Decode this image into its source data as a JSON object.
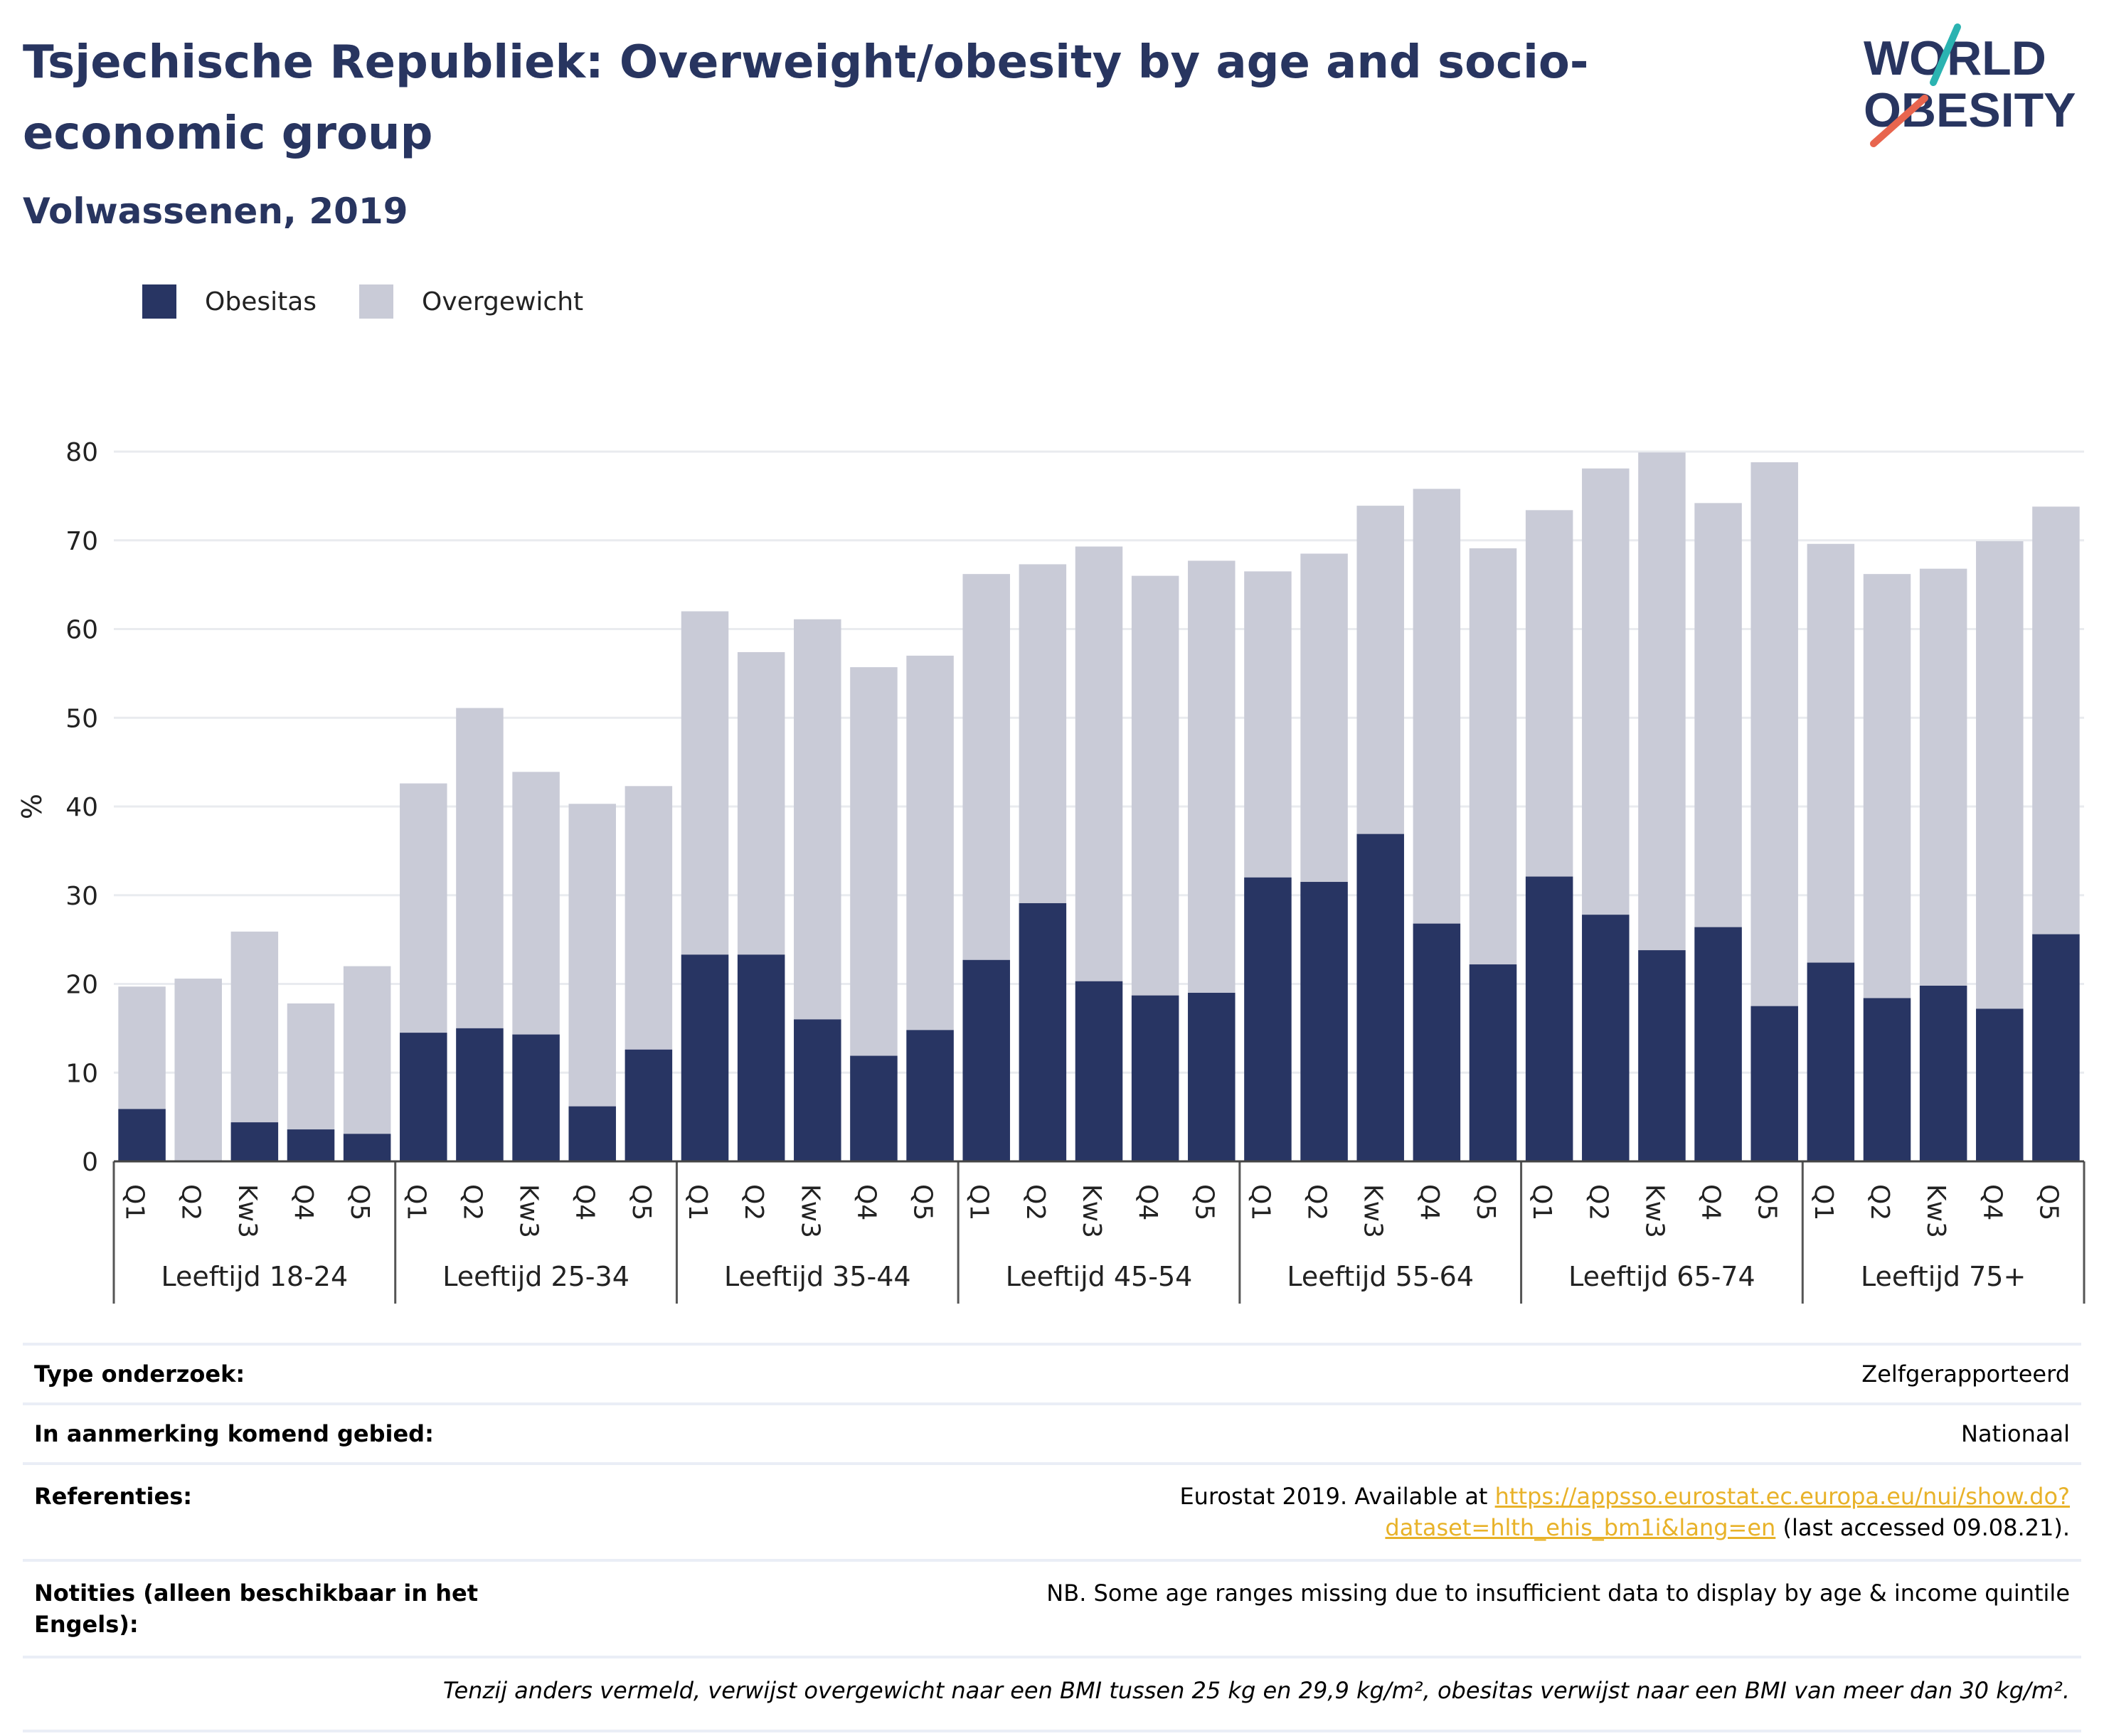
{
  "title": "Tsjechische Republiek: Overweight/obesity by age and socio-economic group",
  "subtitle": "Volwassenen, 2019",
  "logo": {
    "line1": "WORLD",
    "line2": "OBESITY"
  },
  "colors": {
    "obesity": "#283563",
    "overweight": "#c9cbd7",
    "title": "#283560",
    "link": "#e8b229",
    "grid": "#e9ebef"
  },
  "legend": [
    {
      "label": "Obesitas",
      "color": "#283563"
    },
    {
      "label": "Overgewicht",
      "color": "#c9cbd7"
    }
  ],
  "chart_data": {
    "type": "bar",
    "stacked": false,
    "ylabel": "%",
    "ylim": [
      0,
      80
    ],
    "yticks": [
      0,
      10,
      20,
      30,
      40,
      50,
      60,
      70,
      80
    ],
    "grid": true,
    "legend_position": "top-left",
    "groups": [
      "Leeftijd 18-24",
      "Leeftijd 25-34",
      "Leeftijd 35-44",
      "Leeftijd 45-54",
      "Leeftijd 55-64",
      "Leeftijd 65-74",
      "Leeftijd 75+"
    ],
    "categories": [
      "Q1",
      "Q2",
      "Kw3",
      "Q4",
      "Q5"
    ],
    "series": [
      {
        "name": "Overgewicht",
        "values": [
          [
            19.7,
            20.6,
            25.9,
            17.8,
            22.0
          ],
          [
            42.6,
            51.1,
            43.9,
            40.3,
            42.3
          ],
          [
            62.0,
            57.4,
            61.1,
            55.7,
            57.0
          ],
          [
            66.2,
            67.3,
            69.3,
            66.0,
            67.7
          ],
          [
            66.5,
            68.5,
            73.9,
            75.8,
            69.1
          ],
          [
            73.4,
            78.1,
            79.9,
            74.2,
            78.8
          ],
          [
            69.6,
            66.2,
            66.8,
            69.9,
            73.8
          ]
        ]
      },
      {
        "name": "Obesitas",
        "values": [
          [
            5.9,
            null,
            4.4,
            3.6,
            3.1
          ],
          [
            14.5,
            15.0,
            14.3,
            6.2,
            12.6
          ],
          [
            23.3,
            23.3,
            16.0,
            11.9,
            14.8
          ],
          [
            22.7,
            29.1,
            20.3,
            18.7,
            19.0
          ],
          [
            32.0,
            31.5,
            36.9,
            26.8,
            22.2
          ],
          [
            32.1,
            27.8,
            23.8,
            26.4,
            17.5
          ],
          [
            22.4,
            18.4,
            19.8,
            17.2,
            25.6
          ]
        ]
      }
    ]
  },
  "info": [
    {
      "label": "Type onderzoek:",
      "value": "Zelfgerapporteerd"
    },
    {
      "label": "In aanmerking komend gebied:",
      "value": "Nationaal"
    },
    {
      "label": "Referenties:",
      "pre": "Eurostat 2019. Available at ",
      "link": "https://appsso.eurostat.ec.europa.eu/nui/show.do?dataset=hlth_ehis_bm1i&lang=en",
      "post": " (last accessed 09.08.21)."
    },
    {
      "label": "Notities (alleen beschikbaar in het Engels):",
      "value": "NB. Some age ranges missing due to insufficient data to display by age & income quintile"
    }
  ],
  "footnote": "Tenzij anders vermeld, verwijst overgewicht naar een BMI tussen 25 kg en 29,9 kg/m², obesitas verwijst naar een BMI van meer dan 30 kg/m²."
}
